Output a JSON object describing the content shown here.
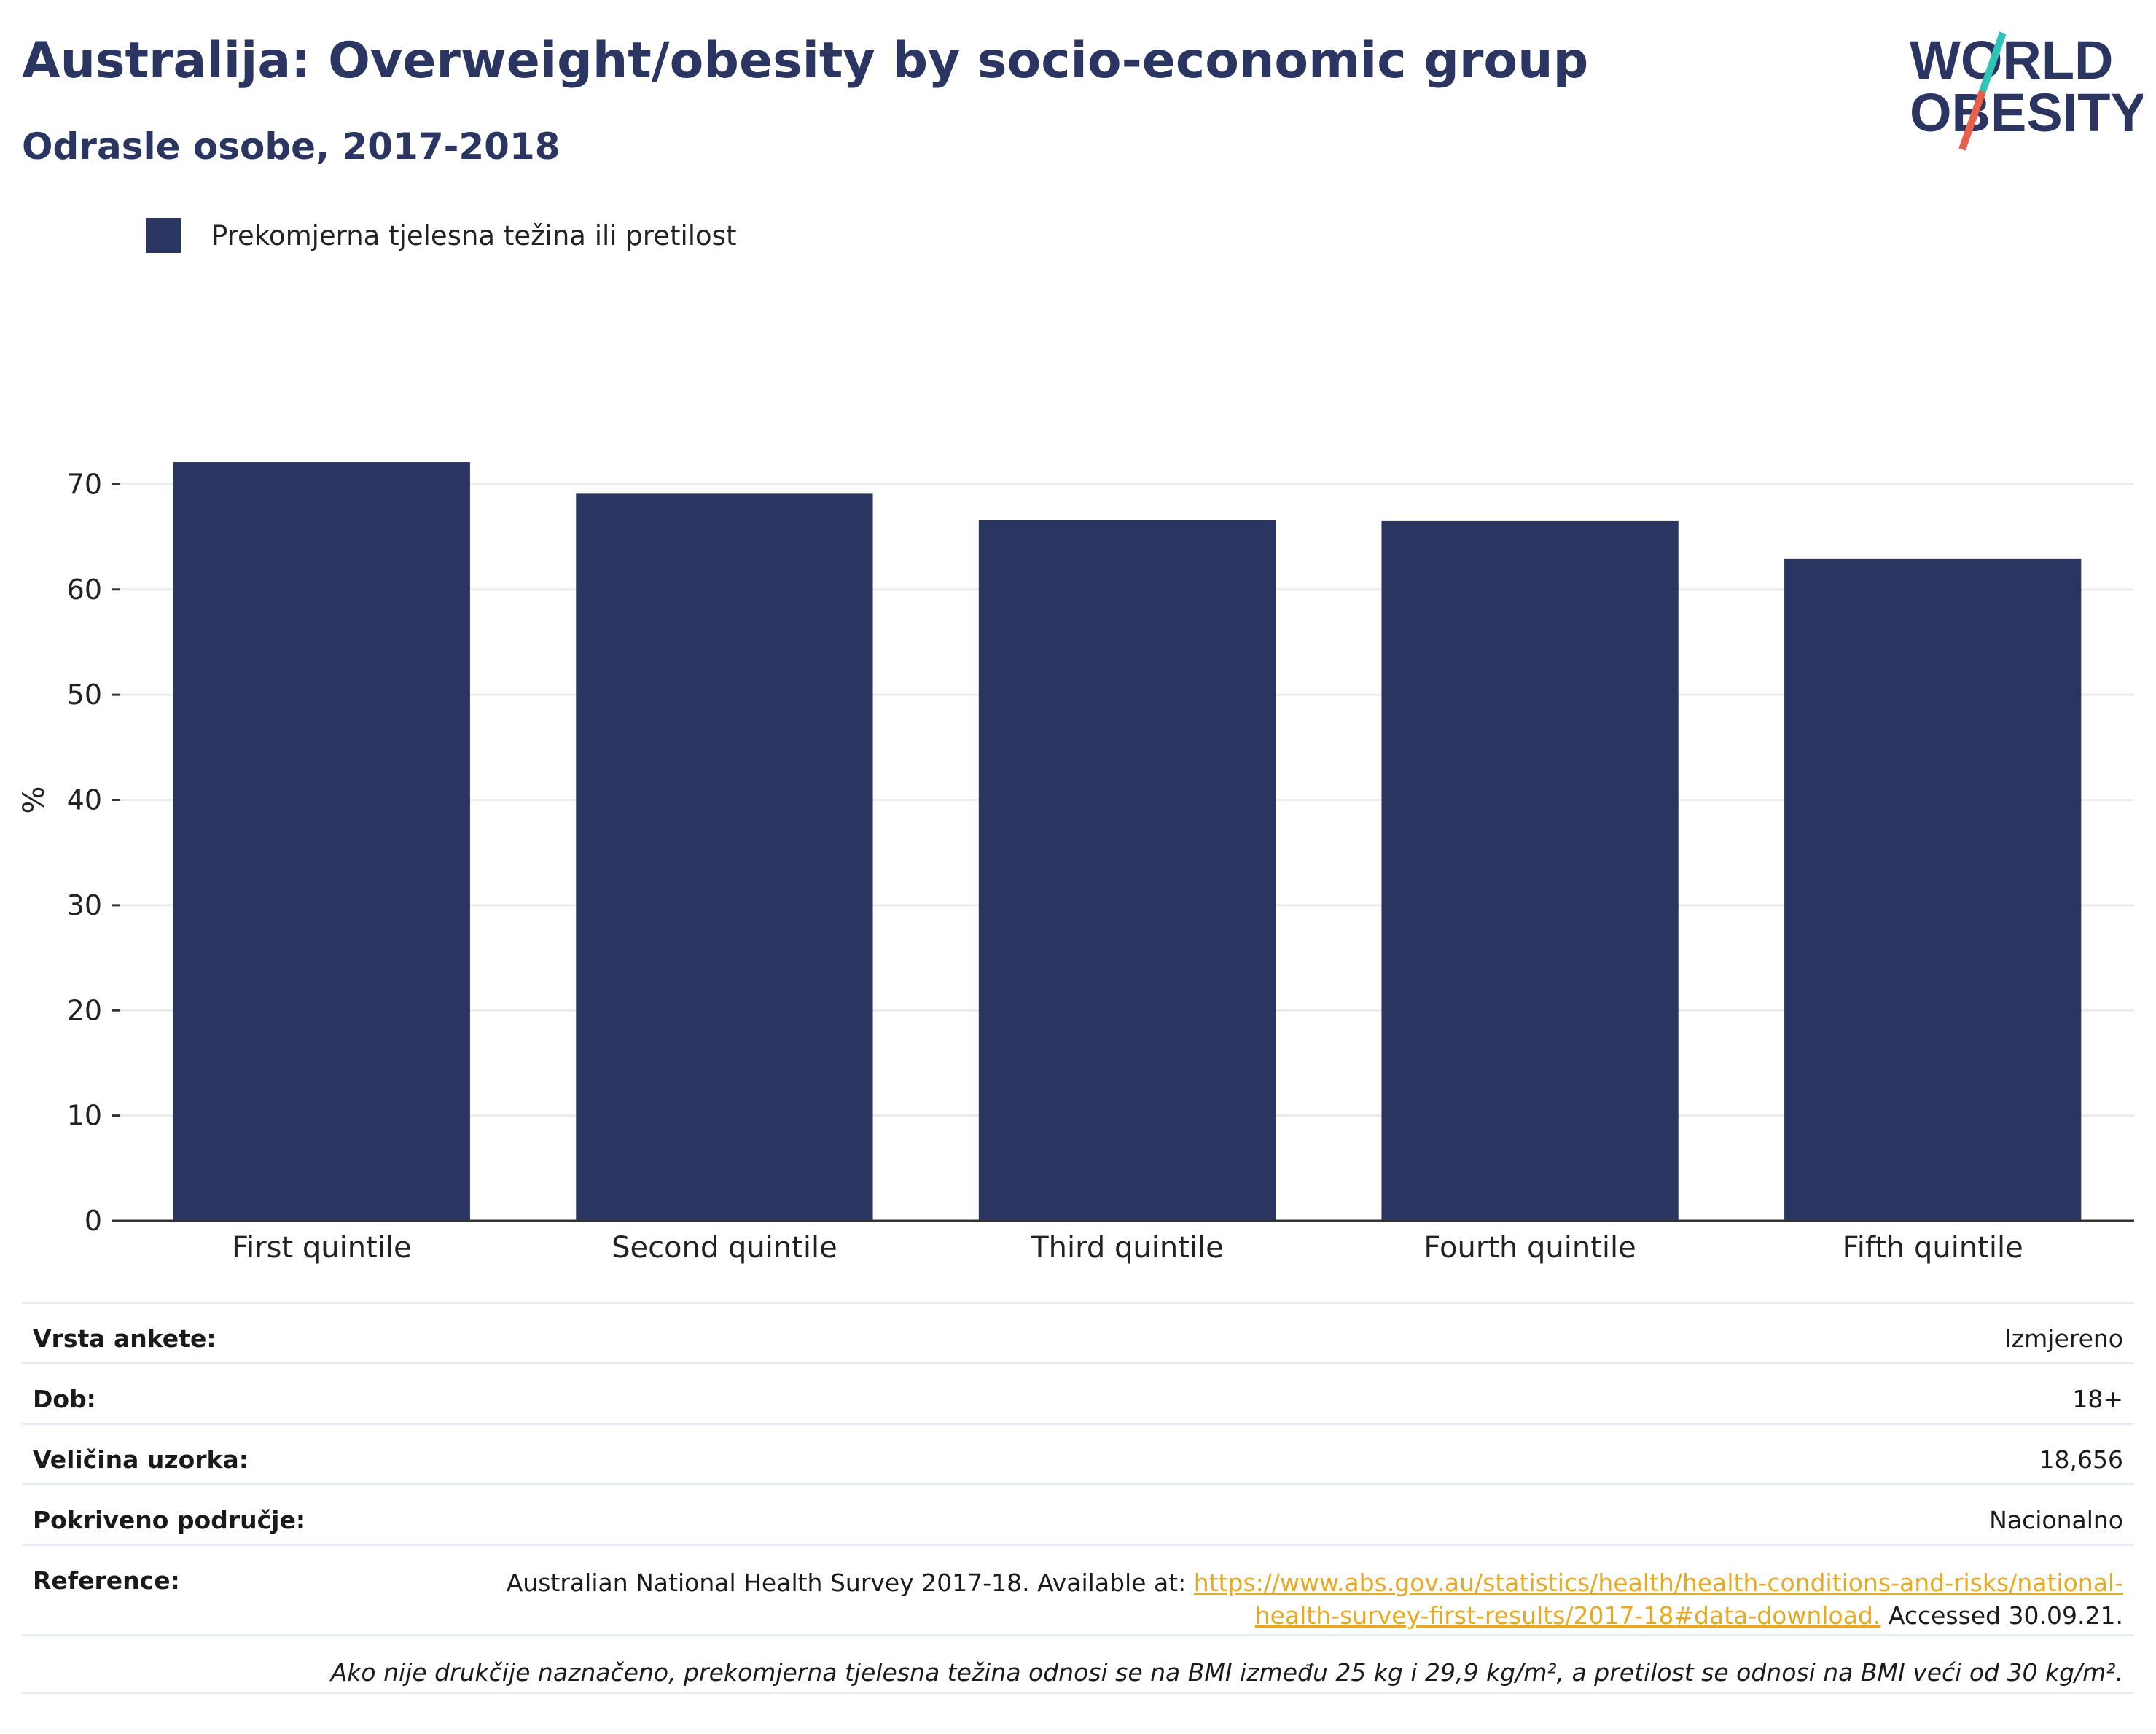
{
  "header": {
    "title": "Australija: Overweight/obesity by socio-economic group",
    "subtitle": "Odrasle osobe, 2017-2018"
  },
  "logo": {
    "line1": "WORLD",
    "line2": "OBESITY"
  },
  "colors": {
    "bar": "#2b3562",
    "title": "#2b3562",
    "link": "#e7a921",
    "logo_teal": "#2ec4b6",
    "logo_red": "#e8604c"
  },
  "chart_data": {
    "type": "bar",
    "title": "Australija: Overweight/obesity by socio-economic group",
    "subtitle": "Odrasle osobe, 2017-2018",
    "categories": [
      "First quintile",
      "Second quintile",
      "Third quintile",
      "Fourth quintile",
      "Fifth quintile"
    ],
    "series": [
      {
        "name": "Prekomjerna tjelesna težina ili pretilost",
        "values": [
          72.1,
          69.1,
          66.6,
          66.5,
          62.9
        ]
      }
    ],
    "xlabel": "",
    "ylabel": "%",
    "ylim": [
      0,
      80
    ],
    "yticks": [
      0,
      10,
      20,
      30,
      40,
      50,
      60,
      70
    ],
    "grid": true,
    "legend_position": "top-left"
  },
  "meta": {
    "rows": [
      {
        "label": "Vrsta ankete:",
        "value": "Izmjereno"
      },
      {
        "label": "Dob:",
        "value": "18+"
      },
      {
        "label": "Veličina uzorka:",
        "value": "18,656"
      },
      {
        "label": "Pokriveno područje:",
        "value": "Nacionalno"
      }
    ],
    "reference": {
      "label": "Reference:",
      "text": "Australian National Health Survey 2017-18. Available at: ",
      "link": "https://www.abs.gov.au/statistics/health/health-conditions-and-risks/national-health-survey-first-results/2017-18#data-download.",
      "suffix": " Accessed 30.09.21."
    },
    "note": "Ako nije drukčije naznačeno, prekomjerna tjelesna težina odnosi se na BMI između 25 kg i 29,9 kg/m², a pretilost se odnosi na BMI veći od 30 kg/m²."
  }
}
